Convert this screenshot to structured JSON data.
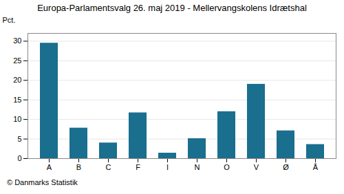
{
  "chart_data": {
    "type": "bar",
    "title": "Europa-Parlamentsvalg 26. maj 2019 - Mellervangskolens Idrætshal",
    "categories": [
      "A",
      "B",
      "C",
      "F",
      "I",
      "N",
      "O",
      "V",
      "Ø",
      "Å"
    ],
    "values": [
      29.5,
      7.8,
      4.0,
      11.7,
      1.4,
      5.1,
      12.0,
      19.0,
      7.1,
      3.6
    ],
    "color": "#1a6e8e",
    "ylabel": "Pct.",
    "ylim": [
      0,
      32
    ],
    "yticks": [
      0,
      5,
      10,
      15,
      20,
      25,
      30
    ],
    "grid": true,
    "footer": "© Danmarks Statistik"
  }
}
